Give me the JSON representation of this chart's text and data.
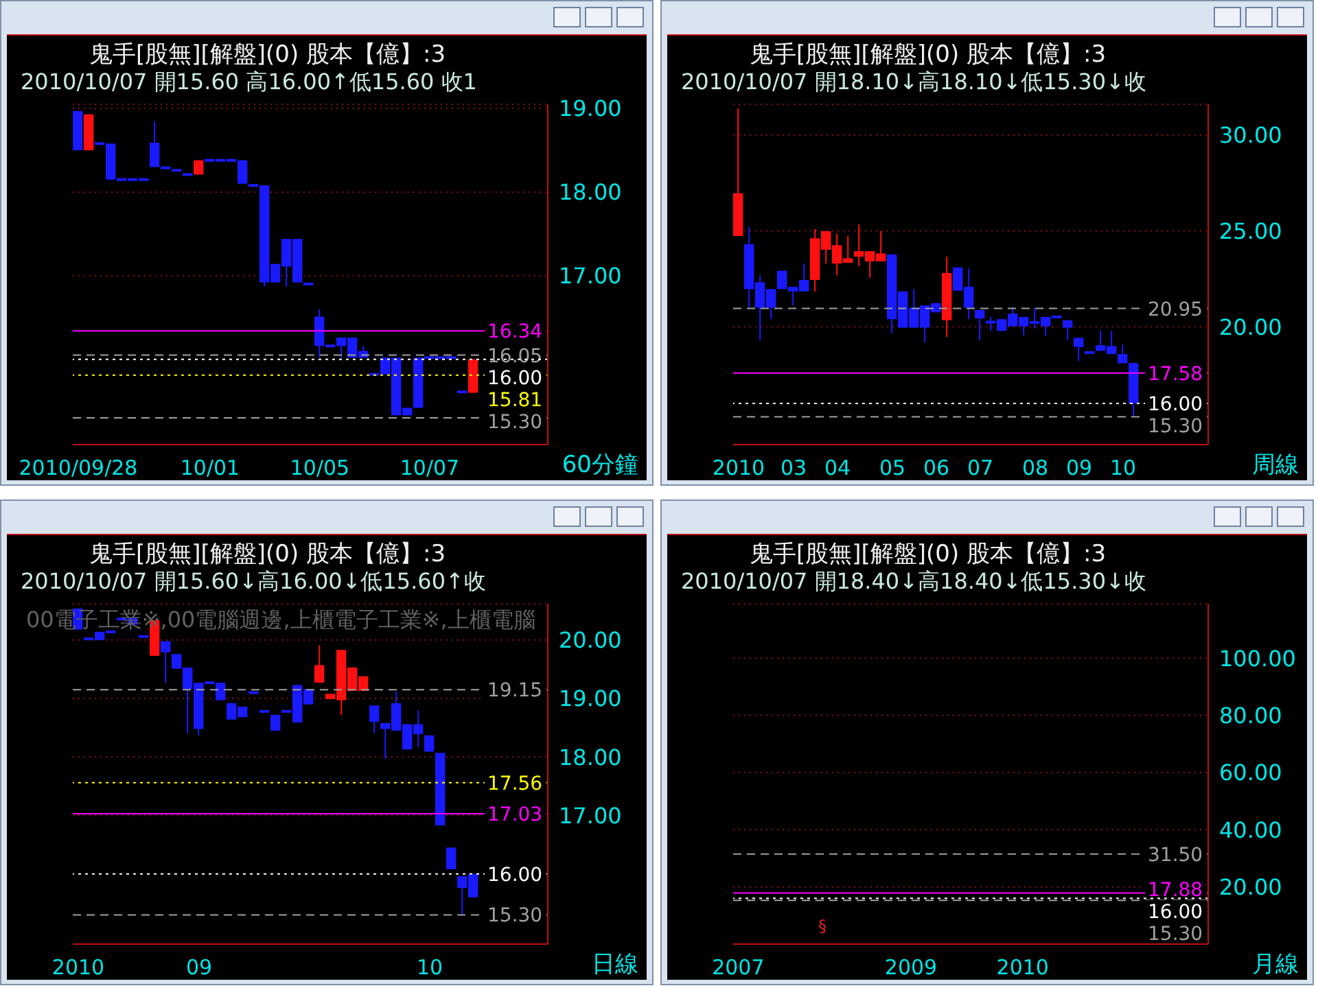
{
  "chart_data": [
    {
      "type": "candlestick",
      "title": "鬼手[股無][解盤](0)  股本【億】:3",
      "subtitle": "2010/10/07 開15.60 高16.00↑低15.60 收1",
      "xlabel": "60分鐘",
      "categories": [
        "2010/09/28",
        null,
        null,
        null,
        null,
        null,
        null,
        null,
        null,
        null,
        null,
        null,
        "10/01",
        null,
        null,
        null,
        null,
        null,
        null,
        null,
        null,
        null,
        "10/05",
        null,
        null,
        null,
        null,
        null,
        null,
        null,
        null,
        null,
        "10/07",
        null,
        null,
        null,
        null
      ],
      "ohlc": [
        [
          18.97,
          18.97,
          18.5,
          18.5
        ],
        [
          18.5,
          18.93,
          18.5,
          18.93
        ],
        [
          18.58,
          18.58,
          18.58,
          18.58
        ],
        [
          18.58,
          18.58,
          18.15,
          18.15
        ],
        [
          18.15,
          18.15,
          18.15,
          18.15
        ],
        [
          18.15,
          18.15,
          18.15,
          18.15
        ],
        [
          18.15,
          18.15,
          18.15,
          18.15
        ],
        [
          18.59,
          18.84,
          18.3,
          18.3
        ],
        [
          18.29,
          18.29,
          18.29,
          18.29
        ],
        [
          18.26,
          18.26,
          18.26,
          18.26
        ],
        [
          18.21,
          18.21,
          18.21,
          18.21
        ],
        [
          18.21,
          18.38,
          18.21,
          18.38
        ],
        [
          18.38,
          18.38,
          18.38,
          18.38
        ],
        [
          18.38,
          18.38,
          18.38,
          18.38
        ],
        [
          18.38,
          18.38,
          18.38,
          18.38
        ],
        [
          18.38,
          18.38,
          18.1,
          18.1
        ],
        [
          18.08,
          18.08,
          18.08,
          18.08
        ],
        [
          18.08,
          18.08,
          16.87,
          16.92
        ],
        [
          17.14,
          17.14,
          16.92,
          16.92
        ],
        [
          17.44,
          17.44,
          16.87,
          17.11
        ],
        [
          17.44,
          17.44,
          16.92,
          16.92
        ],
        [
          16.9,
          16.9,
          16.9,
          16.9
        ],
        [
          16.51,
          16.6,
          16.02,
          16.16
        ],
        [
          16.16,
          16.16,
          16.16,
          16.16
        ],
        [
          16.26,
          16.26,
          16.02,
          16.16
        ],
        [
          16.26,
          16.26,
          16.02,
          16.02
        ],
        [
          16.1,
          16.16,
          16.02,
          16.02
        ],
        [
          15.82,
          15.82,
          15.82,
          15.82
        ],
        [
          16.02,
          16.02,
          15.82,
          15.82
        ],
        [
          16.02,
          16.02,
          15.33,
          15.33
        ],
        [
          15.42,
          15.42,
          15.33,
          15.33
        ],
        [
          16.02,
          16.02,
          15.42,
          15.42
        ],
        [
          16.02,
          16.02,
          16.02,
          16.02
        ],
        [
          16.02,
          16.02,
          16.02,
          16.02
        ],
        [
          16.02,
          16.02,
          16.02,
          16.02
        ],
        [
          15.61,
          15.61,
          15.61,
          15.61
        ],
        [
          15.6,
          16.0,
          15.6,
          16.0
        ]
      ],
      "ylim": [
        14.98,
        19.05
      ],
      "yticks": [
        {
          "value": 17,
          "label": "17.00"
        },
        {
          "value": 18,
          "label": "18.00"
        },
        {
          "value": 19,
          "label": "19.00"
        }
      ],
      "grid": "y",
      "ref_lines": [
        {
          "axis": "y",
          "value": 16.34,
          "label": "16.34",
          "color": "#ff00ff"
        },
        {
          "axis": "y",
          "value": 16.05,
          "label": "16.05",
          "color": "#a0a0a0",
          "line_style": "dashed"
        },
        {
          "axis": "y",
          "value": 15.81,
          "label": "15.81",
          "color": "#ffff00",
          "line_style": "dotted"
        },
        {
          "axis": "y",
          "value": 15.3,
          "label": "15.30",
          "color": "#a0a0a0",
          "line_style": "dashed"
        },
        {
          "axis": "y",
          "value": 16,
          "label": "16.00",
          "color": "#ffffff",
          "line_style": "dotted"
        }
      ]
    },
    {
      "type": "candlestick",
      "title": "鬼手[股無][解盤](0)  股本【億】:3",
      "subtitle": "2010/10/07 開18.10↓高18.10↓低15.30↓收",
      "xlabel": "周線",
      "categories": [
        "2010",
        null,
        null,
        null,
        null,
        "03",
        null,
        null,
        null,
        "04",
        null,
        null,
        null,
        null,
        "05",
        null,
        null,
        null,
        "06",
        null,
        null,
        null,
        "07",
        null,
        null,
        null,
        null,
        "08",
        null,
        null,
        null,
        "09",
        null,
        null,
        null,
        "10",
        null
      ],
      "ohlc": [
        [
          24.73,
          31.38,
          24.73,
          26.96
        ],
        [
          24.3,
          25.22,
          20.99,
          21.96
        ],
        [
          22.32,
          22.68,
          19.3,
          20.99
        ],
        [
          21.96,
          21.96,
          20.39,
          20.99
        ],
        [
          22.92,
          22.92,
          21.96,
          21.96
        ],
        [
          22.08,
          22.08,
          21.11,
          21.84
        ],
        [
          22.44,
          23.29,
          21.84,
          21.84
        ],
        [
          22.44,
          25.1,
          21.84,
          24.61
        ],
        [
          24.01,
          24.98,
          23.29,
          24.98
        ],
        [
          23.29,
          24.86,
          22.68,
          24.25
        ],
        [
          23.33,
          24.73,
          23.33,
          23.57
        ],
        [
          23.65,
          25.34,
          23.16,
          23.94
        ],
        [
          23.41,
          23.94,
          22.56,
          23.94
        ],
        [
          23.41,
          24.98,
          23.41,
          23.82
        ],
        [
          23.77,
          23.77,
          19.66,
          20.39
        ],
        [
          21.84,
          21.84,
          19.95,
          19.95
        ],
        [
          20.99,
          21.96,
          19.95,
          19.95
        ],
        [
          21.11,
          21.11,
          19.18,
          19.95
        ],
        [
          21.23,
          21.23,
          20.75,
          20.75
        ],
        [
          20.34,
          23.65,
          19.47,
          22.8
        ],
        [
          23.09,
          23.09,
          21.88,
          21.88
        ],
        [
          22.08,
          23.04,
          20.39,
          20.99
        ],
        [
          20.87,
          20.87,
          19.3,
          20.43
        ],
        [
          20.24,
          20.51,
          19.78,
          20.24
        ],
        [
          20.39,
          20.39,
          19.78,
          19.78
        ],
        [
          20.68,
          20.99,
          20.02,
          20.02
        ],
        [
          20.51,
          20.51,
          19.54,
          20.02
        ],
        [
          20.22,
          20.99,
          19.9,
          20.22
        ],
        [
          20.51,
          20.51,
          19.54,
          20.02
        ],
        [
          20.51,
          20.51,
          20.51,
          20.51
        ],
        [
          20.34,
          20.34,
          19.3,
          19.95
        ],
        [
          19.42,
          19.42,
          18.21,
          18.94
        ],
        [
          18.65,
          18.65,
          18.65,
          18.65
        ],
        [
          19.03,
          19.78,
          18.74,
          18.74
        ],
        [
          18.99,
          19.78,
          18.57,
          18.57
        ],
        [
          18.57,
          19.06,
          18.09,
          18.09
        ],
        [
          18.1,
          18.1,
          15.3,
          16.0
        ]
      ],
      "ylim": [
        13.85,
        31.6
      ],
      "yticks": [
        {
          "value": 20,
          "label": "20.00"
        },
        {
          "value": 25,
          "label": "25.00"
        },
        {
          "value": 30,
          "label": "30.00"
        }
      ],
      "grid": "y",
      "ref_lines": [
        {
          "axis": "y",
          "value": 20.95,
          "label": "20.95",
          "color": "#a0a0a0",
          "line_style": "dashed"
        },
        {
          "axis": "y",
          "value": 17.58,
          "label": "17.58",
          "color": "#ff00ff"
        },
        {
          "axis": "y",
          "value": 15.3,
          "label": "15.30",
          "color": "#a0a0a0",
          "line_style": "dashed"
        },
        {
          "axis": "y",
          "value": 16,
          "label": "16.00",
          "color": "#ffffff",
          "line_style": "dotted"
        }
      ]
    },
    {
      "type": "candlestick",
      "title": "鬼手[股無][解盤](0)  股本【億】:3",
      "subtitle": "2010/10/07 開15.60↓高16.00↓低15.60↑收",
      "xlabel": "日線",
      "annotations": [
        "00電子工業※,00電腦週邊,上櫃電子工業※,上櫃電腦"
      ],
      "categories": [
        "2010",
        null,
        null,
        null,
        null,
        null,
        null,
        null,
        null,
        null,
        null,
        "09",
        null,
        null,
        null,
        null,
        null,
        null,
        null,
        null,
        null,
        null,
        null,
        null,
        null,
        null,
        null,
        null,
        null,
        null,
        null,
        null,
        "10",
        null,
        null,
        null,
        null
      ],
      "ohlc": [
        [
          20.54,
          20.54,
          20.18,
          20.18
        ],
        [
          20.02,
          20.02,
          20.02,
          20.02
        ],
        [
          20.14,
          20.14,
          20.0,
          20.0
        ],
        [
          20.14,
          20.14,
          20.14,
          20.14
        ],
        [
          20.36,
          20.36,
          20.36,
          20.36
        ],
        [
          20.38,
          20.38,
          20.26,
          20.26
        ],
        [
          20.06,
          20.06,
          20.06,
          20.06
        ],
        [
          19.73,
          20.34,
          19.73,
          20.34
        ],
        [
          19.98,
          19.98,
          19.27,
          19.79
        ],
        [
          19.76,
          19.76,
          19.51,
          19.51
        ],
        [
          19.53,
          19.53,
          18.41,
          19.16
        ],
        [
          19.27,
          19.27,
          18.37,
          18.48
        ],
        [
          19.27,
          19.27,
          19.27,
          19.27
        ],
        [
          19.27,
          19.27,
          18.97,
          18.97
        ],
        [
          18.92,
          18.92,
          18.64,
          18.64
        ],
        [
          18.86,
          18.86,
          18.68,
          18.68
        ],
        [
          19.1,
          19.1,
          19.1,
          19.1
        ],
        [
          18.78,
          18.78,
          18.78,
          18.78
        ],
        [
          18.72,
          18.72,
          18.45,
          18.45
        ],
        [
          18.78,
          18.78,
          18.78,
          18.78
        ],
        [
          19.23,
          19.23,
          18.59,
          18.59
        ],
        [
          19.16,
          19.16,
          18.9,
          18.9
        ],
        [
          19.27,
          19.91,
          19.27,
          19.57
        ],
        [
          18.99,
          19.08,
          18.99,
          19.08
        ],
        [
          18.97,
          19.83,
          18.72,
          19.83
        ],
        [
          19.13,
          19.53,
          19.13,
          19.53
        ],
        [
          19.13,
          19.38,
          19.13,
          19.38
        ],
        [
          18.88,
          18.88,
          18.41,
          18.6
        ],
        [
          18.58,
          18.58,
          17.97,
          18.48
        ],
        [
          18.92,
          19.12,
          18.45,
          18.45
        ],
        [
          18.56,
          18.56,
          18.13,
          18.13
        ],
        [
          18.56,
          18.8,
          18.17,
          18.39
        ],
        [
          18.37,
          18.37,
          18.09,
          18.09
        ],
        [
          18.07,
          18.07,
          16.83,
          16.83
        ],
        [
          16.45,
          16.45,
          16.08,
          16.08
        ],
        [
          15.96,
          15.96,
          15.29,
          15.76
        ],
        [
          16.0,
          16.0,
          15.6,
          15.6
        ]
      ],
      "ylim": [
        14.8,
        20.62
      ],
      "yticks": [
        {
          "value": 17,
          "label": "17.00"
        },
        {
          "value": 18,
          "label": "18.00"
        },
        {
          "value": 19,
          "label": "19.00"
        },
        {
          "value": 20,
          "label": "20.00"
        }
      ],
      "grid": "y",
      "ref_lines": [
        {
          "axis": "y",
          "value": 19.15,
          "label": "19.15",
          "color": "#a0a0a0",
          "line_style": "dashed"
        },
        {
          "axis": "y",
          "value": 17.56,
          "label": "17.56",
          "color": "#ffff00",
          "line_style": "dotted"
        },
        {
          "axis": "y",
          "value": 17.03,
          "label": "17.03",
          "color": "#ff00ff"
        },
        {
          "axis": "y",
          "value": 15.3,
          "label": "15.30",
          "color": "#a0a0a0",
          "line_style": "dashed"
        },
        {
          "axis": "y",
          "value": 16,
          "label": "16.00",
          "color": "#ffffff",
          "line_style": "dotted"
        }
      ]
    },
    {
      "type": "candlestick",
      "title": "鬼手[股無][解盤](0)  股本【億】:3",
      "subtitle": "2010/10/07 開18.40↓高18.40↓低15.30↓收",
      "xlabel": "月線",
      "annotations": [
        "§"
      ],
      "categories": [
        "2007",
        null,
        null,
        null,
        null,
        null,
        null,
        null,
        null,
        null,
        null,
        null,
        null,
        null,
        null,
        null,
        null,
        "2009",
        null,
        null,
        null,
        null,
        null,
        null,
        null,
        null,
        null,
        null,
        "2010",
        null,
        null,
        null,
        null,
        null,
        null,
        null,
        null,
        null,
        null,
        null
      ],
      "ylim": [
        0,
        119
      ],
      "yticks": [
        {
          "value": 20,
          "label": "20.00"
        },
        {
          "value": 40,
          "label": "40.00"
        },
        {
          "value": 60,
          "label": "60.00"
        },
        {
          "value": 80,
          "label": "80.00"
        },
        {
          "value": 100,
          "label": "100.00"
        }
      ],
      "grid": "y",
      "ref_lines": [
        {
          "axis": "y",
          "value": 31.5,
          "label": "31.50",
          "color": "#a0a0a0",
          "line_style": "dashed"
        },
        {
          "axis": "y",
          "value": 17.88,
          "label": "17.88",
          "color": "#ff00ff"
        },
        {
          "axis": "y",
          "value": 15.3,
          "label": "15.30",
          "color": "#a0a0a0",
          "line_style": "dashed"
        },
        {
          "axis": "y",
          "value": 16,
          "label": "16.00",
          "color": "#ffffff",
          "line_style": "dotted"
        }
      ]
    }
  ]
}
